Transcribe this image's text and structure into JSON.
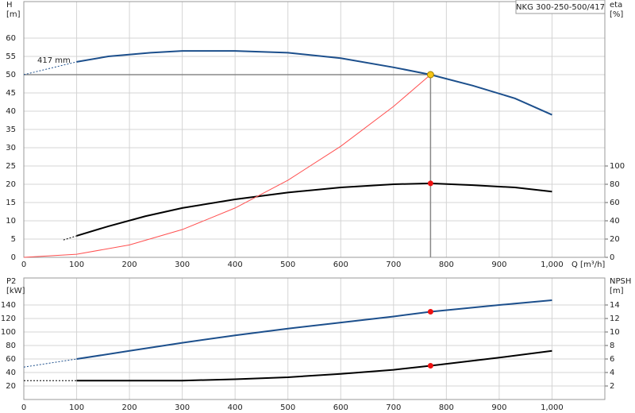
{
  "chart_data": [
    {
      "type": "line",
      "title": "NKG 300-250-500/417",
      "annotation": "417 mm",
      "ylabel": [
        "H",
        "[m]"
      ],
      "y2label": [
        "eta",
        "[%]"
      ],
      "xlabel": "Q [m³/h]",
      "xlim": [
        0,
        1100
      ],
      "xticks": [
        0,
        100,
        200,
        300,
        400,
        500,
        600,
        700,
        800,
        900,
        {
          "value": 1000,
          "label": "1,000"
        }
      ],
      "ylim": [
        0,
        70
      ],
      "yticks": [
        0,
        5,
        10,
        15,
        20,
        25,
        30,
        35,
        40,
        45,
        50,
        55,
        60
      ],
      "y2lim": [
        0,
        280
      ],
      "y2ticks": [
        0,
        20,
        40,
        60,
        80,
        100
      ],
      "grid": true,
      "series": [
        {
          "color": "#1c4f8c",
          "width": 2,
          "x": [
            100,
            160,
            240,
            300,
            400,
            500,
            600,
            700,
            770,
            850,
            930,
            1000
          ],
          "values": [
            53.5,
            55,
            56,
            56.5,
            56.5,
            56,
            54.5,
            52,
            50,
            47,
            43.5,
            39
          ]
        },
        {
          "color": "#1c4f8c",
          "width": 1,
          "dashed": true,
          "x": [
            0,
            100
          ],
          "values": [
            50,
            53.5
          ]
        },
        {
          "color": "#000000",
          "width": 2,
          "axis": "y2",
          "x": [
            100,
            160,
            230,
            300,
            400,
            500,
            600,
            700,
            770,
            850,
            930,
            1000
          ],
          "values": [
            23.5,
            34,
            45,
            54,
            63.5,
            71,
            76.5,
            80,
            81,
            79,
            76.5,
            72
          ]
        },
        {
          "color": "#000000",
          "width": 1,
          "dashed": true,
          "axis": "y2",
          "x": [
            75,
            100
          ],
          "values": [
            19,
            23.5
          ]
        },
        {
          "color": "#ff5050",
          "width": 1,
          "x": [
            0,
            100,
            200,
            300,
            400,
            500,
            600,
            700,
            770
          ],
          "values": [
            0,
            0.84,
            3.4,
            7.6,
            13.5,
            21.1,
            30.4,
            41.3,
            50
          ]
        }
      ],
      "operating_point": {
        "x": 770,
        "y": 50,
        "color": "#f5c518"
      },
      "markers": [
        {
          "x": 770,
          "y": 81,
          "axis": "y2",
          "color": "#ee1111"
        }
      ]
    },
    {
      "type": "line",
      "ylabel": [
        "P2",
        "[kW]"
      ],
      "y2label": [
        "NPSH",
        "[m]"
      ],
      "xlim": [
        0,
        1100
      ],
      "xticks": [
        0,
        100,
        200,
        300,
        400,
        500,
        600,
        700,
        800,
        900,
        {
          "value": 1000,
          "label": "1,000"
        }
      ],
      "ylim": [
        0,
        180
      ],
      "yticks": [
        20,
        40,
        60,
        80,
        100,
        120,
        140
      ],
      "y2lim": [
        0,
        18
      ],
      "y2ticks": [
        2,
        4,
        6,
        8,
        10,
        12,
        14
      ],
      "grid": true,
      "series": [
        {
          "color": "#1c4f8c",
          "width": 2,
          "x": [
            100,
            200,
            300,
            400,
            500,
            600,
            700,
            770,
            900,
            1000
          ],
          "values": [
            60,
            72,
            84,
            95,
            105,
            114,
            123,
            130,
            140,
            147
          ]
        },
        {
          "color": "#1c4f8c",
          "width": 1,
          "dashed": true,
          "x": [
            0,
            100
          ],
          "values": [
            48,
            60
          ]
        },
        {
          "color": "#000000",
          "width": 2,
          "axis": "y2",
          "x": [
            100,
            300,
            400,
            500,
            600,
            700,
            770,
            900,
            1000
          ],
          "values": [
            2.8,
            2.8,
            3.0,
            3.3,
            3.8,
            4.4,
            5.0,
            6.2,
            7.2
          ]
        },
        {
          "color": "#000000",
          "width": 1,
          "dashed": true,
          "axis": "y2",
          "x": [
            0,
            100
          ],
          "values": [
            2.8,
            2.8
          ]
        }
      ],
      "markers": [
        {
          "x": 770,
          "y": 130,
          "color": "#ee1111"
        },
        {
          "x": 770,
          "y": 5.0,
          "axis": "y2",
          "color": "#ee1111"
        }
      ]
    }
  ]
}
